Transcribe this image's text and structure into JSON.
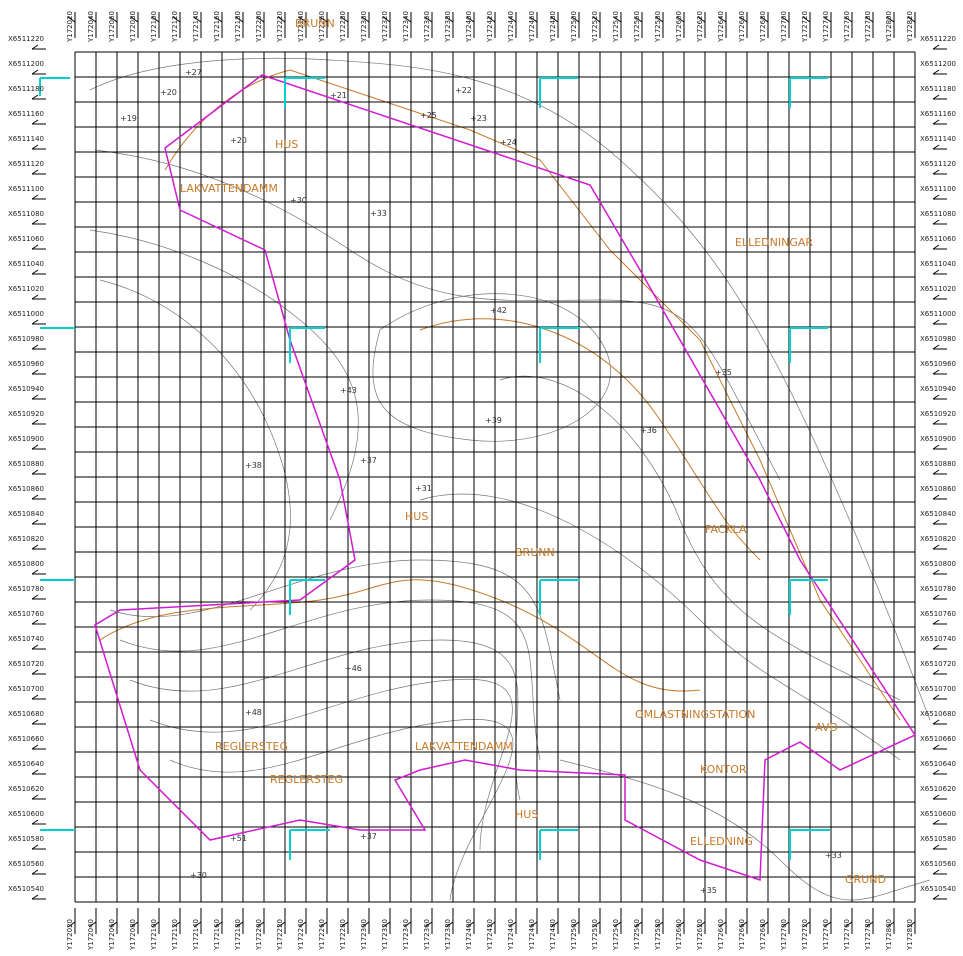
{
  "grid": {
    "row_labels": [
      "X6511220",
      "X6511200",
      "X6511180",
      "X6511160",
      "X6511140",
      "X6511120",
      "X6511100",
      "X6511080",
      "X6511060",
      "X6511040",
      "X6511020",
      "X6511000",
      "X6510980",
      "X6510960",
      "X6510940",
      "X6510920",
      "X6510900",
      "X6510880",
      "X6510860",
      "X6510840",
      "X6510820",
      "X6510800",
      "X6510780",
      "X6510760",
      "X6510740",
      "X6510720",
      "X6510700",
      "X6510680",
      "X6510660",
      "X6510640",
      "X6510620",
      "X6510600",
      "X6510580",
      "X6510560",
      "X6510540"
    ],
    "column_labels": [
      "Y172020",
      "Y172040",
      "Y172060",
      "Y172080",
      "Y172100",
      "Y172120",
      "Y172140",
      "Y172160",
      "Y172180",
      "Y172200",
      "Y172220",
      "Y172240",
      "Y172260",
      "Y172280",
      "Y172300",
      "Y172320",
      "Y172340",
      "Y172360",
      "Y172380",
      "Y172400",
      "Y172420",
      "Y172440",
      "Y172460",
      "Y172480",
      "Y172500",
      "Y172520",
      "Y172540",
      "Y172560",
      "Y172580",
      "Y172600",
      "Y172620",
      "Y172640",
      "Y172660",
      "Y172680",
      "Y172700",
      "Y172720",
      "Y172740",
      "Y172760",
      "Y172780",
      "Y172800",
      "Y172820"
    ]
  },
  "labels": [
    "BRUNN",
    "LAKVATTENDAMM",
    "HUS",
    "ELLEDNINGAR",
    "HUS",
    "BRUNN",
    "FACKLA",
    "OMLASTNINGSTATION",
    "AVD",
    "REGLERSTEG",
    "REGLERSTEG",
    "LAKVATTENDAMM",
    "KONTOR",
    "ELLEDNING",
    "GRUND",
    "HUS"
  ],
  "spot_heights": [
    "+27",
    "+20",
    "+19",
    "+21",
    "+22",
    "+25",
    "+23",
    "+24",
    "+20",
    "+30",
    "+33",
    "+42",
    "+43",
    "+38",
    "+37",
    "+31",
    "+39",
    "+36",
    "+35",
    "+48",
    "+46",
    "+51",
    "+30",
    "+37",
    "+35",
    "+33"
  ]
}
